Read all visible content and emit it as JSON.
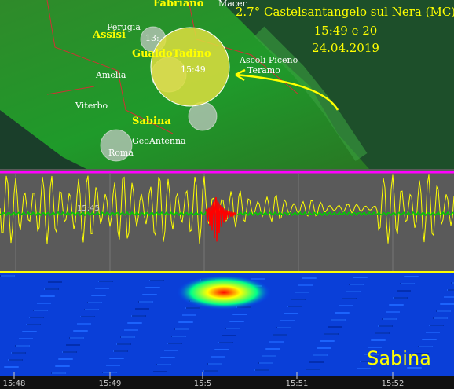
{
  "map": {
    "labels": [
      "Fabriano",
      "Macer",
      "Assisi",
      "Perugia",
      "GualdoTadino",
      "Amelia",
      "Ascoli Piceno",
      "Teramo",
      "Viterbo",
      "Sabina",
      "GeoAntenna",
      "Roma",
      "13:",
      "15:49"
    ]
  },
  "annotation": {
    "line1": "2.7° Castelsantangelo sul Nera (MC)",
    "line2": "15:49 e 20",
    "line3": "24.04.2019"
  },
  "seismogram": {
    "time_label": "15:45"
  },
  "spectrogram": {
    "station": "Sabina"
  },
  "time_axis": {
    "ticks": [
      "15:48",
      "15:49",
      "15:5",
      "15:51",
      "15:52"
    ]
  }
}
